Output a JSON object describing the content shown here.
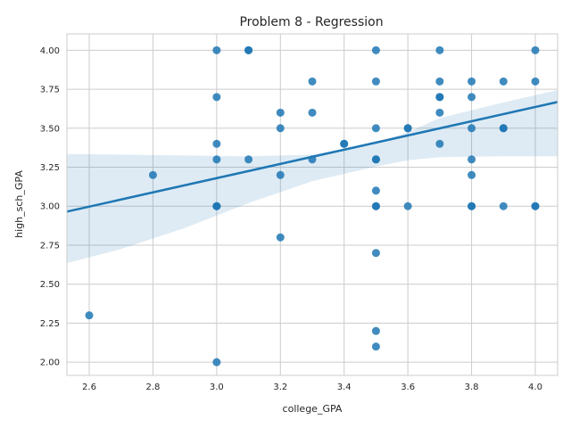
{
  "chart_data": {
    "type": "scatter",
    "title": "Problem 8 - Regression",
    "xlabel": "college_GPA",
    "ylabel": "high_sch_GPA",
    "xlim": [
      2.53,
      4.07
    ],
    "ylim": [
      1.915,
      4.105
    ],
    "xticks": [
      "2.6",
      "2.8",
      "3.0",
      "3.2",
      "3.4",
      "3.6",
      "3.8",
      "4.0"
    ],
    "yticks": [
      "2.00",
      "2.25",
      "2.50",
      "2.75",
      "3.00",
      "3.25",
      "3.50",
      "3.75",
      "4.00"
    ],
    "grid": true,
    "point_color": "#1f77b4",
    "line_color": "#1f77b4",
    "band_color": "#1f77b4",
    "points": [
      [
        2.6,
        2.3
      ],
      [
        2.8,
        3.2
      ],
      [
        3.0,
        4.0
      ],
      [
        3.0,
        3.7
      ],
      [
        3.0,
        3.4
      ],
      [
        3.0,
        3.3
      ],
      [
        3.0,
        3.0
      ],
      [
        3.0,
        3.0
      ],
      [
        3.0,
        3.0
      ],
      [
        3.0,
        2.0
      ],
      [
        3.1,
        4.0
      ],
      [
        3.1,
        4.0
      ],
      [
        3.1,
        3.3
      ],
      [
        3.2,
        3.6
      ],
      [
        3.2,
        3.5
      ],
      [
        3.2,
        3.2
      ],
      [
        3.2,
        2.8
      ],
      [
        3.3,
        3.8
      ],
      [
        3.3,
        3.6
      ],
      [
        3.3,
        3.3
      ],
      [
        3.4,
        3.4
      ],
      [
        3.4,
        3.4
      ],
      [
        3.5,
        4.0
      ],
      [
        3.5,
        3.8
      ],
      [
        3.5,
        3.5
      ],
      [
        3.5,
        3.3
      ],
      [
        3.5,
        3.3
      ],
      [
        3.5,
        3.1
      ],
      [
        3.5,
        3.0
      ],
      [
        3.5,
        3.0
      ],
      [
        3.5,
        2.7
      ],
      [
        3.5,
        2.2
      ],
      [
        3.5,
        2.1
      ],
      [
        3.6,
        3.5
      ],
      [
        3.6,
        3.5
      ],
      [
        3.6,
        3.0
      ],
      [
        3.7,
        4.0
      ],
      [
        3.7,
        3.8
      ],
      [
        3.7,
        3.7
      ],
      [
        3.7,
        3.7
      ],
      [
        3.7,
        3.6
      ],
      [
        3.7,
        3.4
      ],
      [
        3.8,
        3.8
      ],
      [
        3.8,
        3.7
      ],
      [
        3.8,
        3.5
      ],
      [
        3.8,
        3.3
      ],
      [
        3.8,
        3.2
      ],
      [
        3.8,
        3.0
      ],
      [
        3.8,
        3.0
      ],
      [
        3.9,
        3.8
      ],
      [
        3.9,
        3.5
      ],
      [
        3.9,
        3.5
      ],
      [
        3.9,
        3.0
      ],
      [
        4.0,
        4.0
      ],
      [
        4.0,
        3.8
      ],
      [
        4.0,
        3.0
      ],
      [
        4.0,
        3.0
      ]
    ],
    "regression": {
      "slope": 0.4565,
      "intercept": 1.8103
    },
    "confidence_band": {
      "x": [
        2.53,
        2.7,
        2.9,
        3.1,
        3.3,
        3.5,
        3.6,
        3.7,
        3.9,
        4.07
      ],
      "lower": [
        2.635,
        2.725,
        2.86,
        3.02,
        3.16,
        3.255,
        3.295,
        3.315,
        3.32,
        3.32
      ],
      "upper": [
        3.335,
        3.33,
        3.325,
        3.32,
        3.33,
        3.405,
        3.475,
        3.565,
        3.665,
        3.745
      ]
    }
  }
}
